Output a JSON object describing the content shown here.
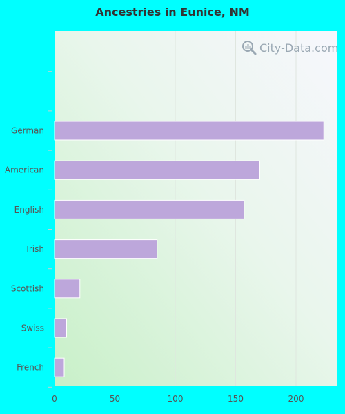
{
  "title": "Ancestries in Eunice, NM",
  "watermark": "City-Data.com",
  "chart_data": {
    "type": "bar",
    "orientation": "horizontal",
    "title": "Ancestries in Eunice, NM",
    "xlabel": "",
    "ylabel": "",
    "categories": [
      "German",
      "American",
      "English",
      "Irish",
      "Scottish",
      "Swiss",
      "French"
    ],
    "values": [
      223,
      170,
      157,
      85,
      21,
      10,
      8
    ],
    "xlim": [
      0,
      235
    ],
    "xticks": [
      0,
      50,
      100,
      150,
      200
    ],
    "grid": true,
    "bar_color": "#bda7db"
  },
  "colors": {
    "background": "#00ffff",
    "bar": "#bda7db",
    "plot_bg_top_right": "#f7f7fd",
    "plot_bg_bottom_left": "#c8f0c8"
  }
}
